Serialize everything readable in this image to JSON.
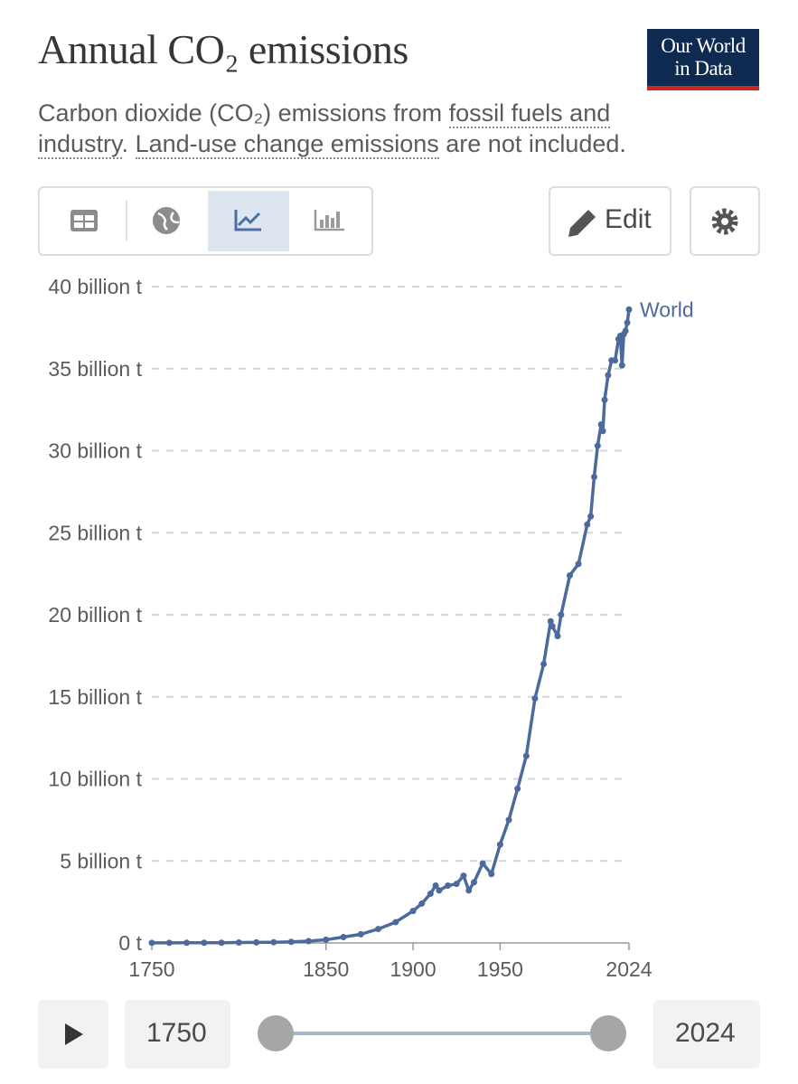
{
  "chart_data": {
    "type": "line",
    "title": "Annual CO₂ emissions",
    "subtitle": {
      "before": "Carbon dioxide (CO₂) emissions from ",
      "link1": "fossil fuels and industry",
      "middle": ". ",
      "link2": "Land-use change emissions",
      "after": " are not included."
    },
    "logo": [
      "Our World",
      "in Data"
    ],
    "edit_button": "Edit",
    "x": [
      1750,
      1760,
      1770,
      1780,
      1790,
      1800,
      1810,
      1820,
      1830,
      1840,
      1850,
      1860,
      1870,
      1880,
      1890,
      1900,
      1905,
      1910,
      1913,
      1915,
      1920,
      1925,
      1929,
      1932,
      1935,
      1940,
      1945,
      1950,
      1955,
      1960,
      1965,
      1970,
      1975,
      1979,
      1980,
      1983,
      1985,
      1990,
      1995,
      2000,
      2002,
      2004,
      2006,
      2008,
      2009,
      2010,
      2012,
      2014,
      2016,
      2018,
      2019,
      2020,
      2021,
      2022,
      2023,
      2024
    ],
    "series": [
      {
        "name": "World",
        "color": "#4c6a9c",
        "values": [
          0.009,
          0.01,
          0.011,
          0.013,
          0.015,
          0.028,
          0.036,
          0.044,
          0.066,
          0.11,
          0.197,
          0.36,
          0.53,
          0.85,
          1.27,
          1.95,
          2.4,
          3.0,
          3.5,
          3.2,
          3.5,
          3.6,
          4.1,
          3.2,
          3.7,
          4.85,
          4.2,
          6.0,
          7.5,
          9.4,
          11.4,
          14.9,
          17.0,
          19.6,
          19.3,
          18.7,
          20.0,
          22.4,
          23.1,
          25.5,
          26.0,
          28.4,
          30.3,
          31.6,
          31.2,
          33.1,
          34.6,
          35.5,
          35.5,
          36.8,
          37.0,
          35.2,
          37.1,
          37.3,
          37.8,
          38.6
        ]
      }
    ],
    "xlim": [
      1750,
      2024
    ],
    "xticks": [
      1750,
      1850,
      1900,
      1950,
      2024
    ],
    "ylim": [
      0,
      40
    ],
    "yticks": [
      {
        "value": 0,
        "label": "0 t"
      },
      {
        "value": 5,
        "label": "5 billion t"
      },
      {
        "value": 10,
        "label": "10 billion t"
      },
      {
        "value": 15,
        "label": "15 billion t"
      },
      {
        "value": 20,
        "label": "20 billion t"
      },
      {
        "value": 25,
        "label": "25 billion t"
      },
      {
        "value": 30,
        "label": "30 billion t"
      },
      {
        "value": 35,
        "label": "35 billion t"
      },
      {
        "value": 40,
        "label": "40 billion t"
      }
    ],
    "grid": true
  }
}
